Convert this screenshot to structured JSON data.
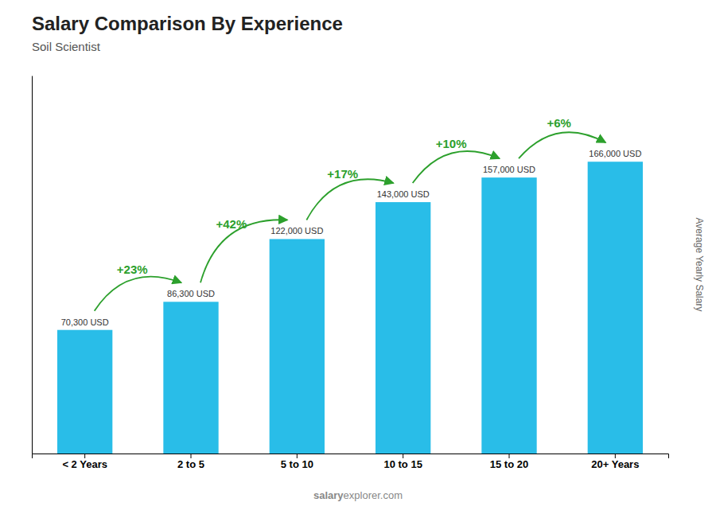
{
  "chart_data": {
    "type": "bar",
    "title": "Salary Comparison By Experience",
    "subtitle": "Soil Scientist",
    "ylabel": "Average Yearly Salary",
    "watermark": [
      "salary",
      "explorer.com"
    ],
    "categories": [
      "< 2 Years",
      "2 to 5",
      "5 to 10",
      "10 to 15",
      "15 to 20",
      "20+ Years"
    ],
    "values": [
      70300,
      86300,
      122000,
      143000,
      157000,
      166000
    ],
    "value_labels": [
      "70,300 USD",
      "86,300 USD",
      "122,000 USD",
      "143,000 USD",
      "157,000 USD",
      "166,000 USD"
    ],
    "pct_changes": [
      null,
      "+23%",
      "+42%",
      "+17%",
      "+10%",
      "+6%"
    ],
    "color": "#29bde8",
    "ylim": [
      0,
      215000
    ],
    "data_labels": true,
    "tick_labels": "x",
    "grid": false
  }
}
